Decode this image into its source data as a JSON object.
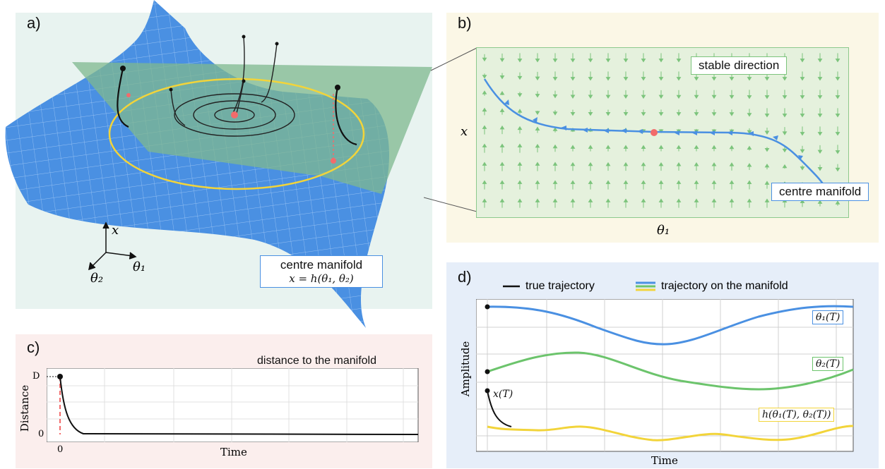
{
  "panel_a": {
    "label": "a)",
    "axis_x": "x",
    "axis_theta1": "θ₁",
    "axis_theta2": "θ₂",
    "manifold_box_title": "centre manifold",
    "manifold_box_formula": "x = h(θ₁, θ₂)"
  },
  "panel_b": {
    "label": "b)",
    "stable_label": "stable direction",
    "manifold_label": "centre manifold",
    "xlabel": "θ₁",
    "ylabel": "x"
  },
  "panel_c": {
    "label": "c)",
    "legend": "distance to the manifold",
    "xlabel": "Time",
    "ylabel": "Distance",
    "ytick_top": "D",
    "ytick_bottom": "0",
    "xtick": "0"
  },
  "panel_d": {
    "label": "d)",
    "legend_true": "true trajectory",
    "legend_manifold": "trajectory on the manifold",
    "xlabel": "Time",
    "ylabel": "Amplitude",
    "tag_theta1": "θ₁(T)",
    "tag_theta2": "θ₂(T)",
    "tag_x": "x(T)",
    "tag_h": "h(θ₁(T), θ₂(T))"
  },
  "colors": {
    "blue": "#4a90e2",
    "green": "#6cc46c",
    "yellow": "#f2d43a",
    "red": "#f26b6b",
    "bg_a": "#e8f3f0",
    "bg_b": "#fbf7e6",
    "bg_c": "#fbeeed",
    "bg_d": "#e6eef9"
  }
}
